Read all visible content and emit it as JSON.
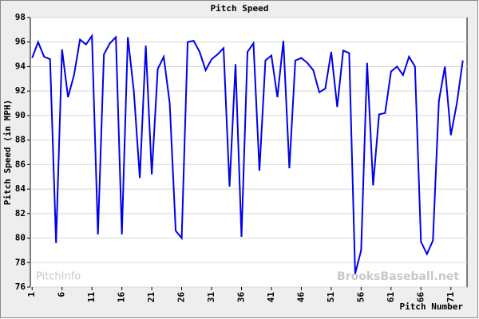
{
  "chart_data": {
    "type": "line",
    "title": "Pitch Speed",
    "xlabel": "Pitch Number",
    "ylabel": "Pitch Speed (in MPH)",
    "watermarks": [
      "PitchInfo",
      "BrooksBaseball.net"
    ],
    "x": [
      1,
      2,
      3,
      4,
      5,
      6,
      7,
      8,
      9,
      10,
      11,
      12,
      13,
      14,
      15,
      16,
      17,
      18,
      19,
      20,
      21,
      22,
      23,
      24,
      25,
      26,
      27,
      28,
      29,
      30,
      31,
      32,
      33,
      34,
      35,
      36,
      37,
      38,
      39,
      40,
      41,
      42,
      43,
      44,
      45,
      46,
      47,
      48,
      49,
      50,
      51,
      52,
      53,
      54,
      55,
      56,
      57,
      58,
      59,
      60,
      61,
      62,
      63,
      64,
      65,
      66,
      67,
      68,
      69,
      70,
      71,
      72,
      73
    ],
    "series": [
      {
        "name": "Pitch Speed",
        "color": "#0000ee",
        "values": [
          94.7,
          96.0,
          94.8,
          94.6,
          79.6,
          95.4,
          91.5,
          93.3,
          96.2,
          95.8,
          96.5,
          80.3,
          95.0,
          95.9,
          96.4,
          80.3,
          96.4,
          92.0,
          84.9,
          95.7,
          85.2,
          93.8,
          94.8,
          91.0,
          80.6,
          80.0,
          96.0,
          96.1,
          95.2,
          93.7,
          94.6,
          95.0,
          95.5,
          84.2,
          94.2,
          80.1,
          95.2,
          95.9,
          85.5,
          94.5,
          94.9,
          91.5,
          96.1,
          85.7,
          94.5,
          94.7,
          94.3,
          93.7,
          91.9,
          92.2,
          95.2,
          90.7,
          95.3,
          95.1,
          77.1,
          79.0,
          94.3,
          84.3,
          90.1,
          90.2,
          93.6,
          94.0,
          93.3,
          94.8,
          94.0,
          79.7,
          78.7,
          79.8,
          91.2,
          94.0,
          88.4,
          91.0,
          94.5
        ]
      }
    ],
    "xlim": [
      0.7,
      73.7
    ],
    "xticks": [
      1,
      6,
      11,
      16,
      21,
      26,
      31,
      36,
      41,
      46,
      51,
      56,
      61,
      66,
      71
    ],
    "ylim": [
      76,
      98
    ],
    "yticks": [
      76,
      78,
      80,
      82,
      84,
      86,
      88,
      90,
      92,
      94,
      96,
      98
    ],
    "grid": true
  }
}
